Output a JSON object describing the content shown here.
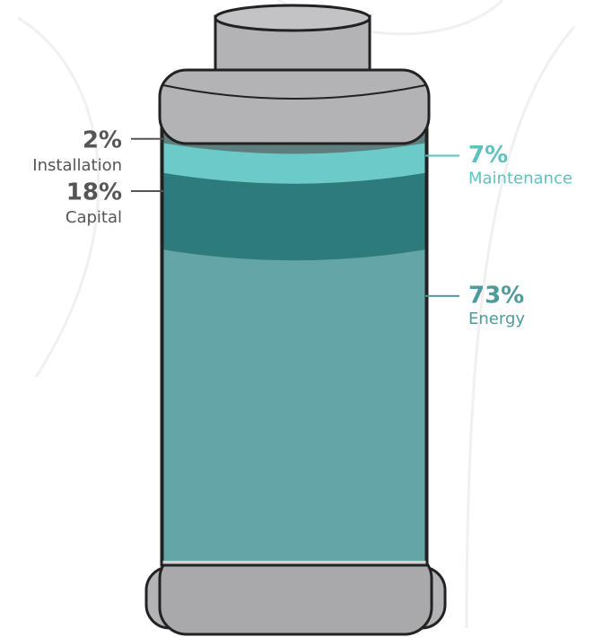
{
  "chart_data": {
    "type": "cylinder",
    "categories": [
      "Installation",
      "Maintenance",
      "Capital",
      "Energy"
    ],
    "values": [
      2,
      7,
      18,
      73
    ],
    "value_labels": [
      "2%",
      "7%",
      "18%",
      "73%"
    ],
    "colors": [
      "#5f7f7e",
      "#6ccbc9",
      "#2e7b7b",
      "#64a6a7"
    ],
    "label_colors": [
      "#555555",
      "#5fc2c0",
      "#555555",
      "#4f9a9b"
    ]
  }
}
